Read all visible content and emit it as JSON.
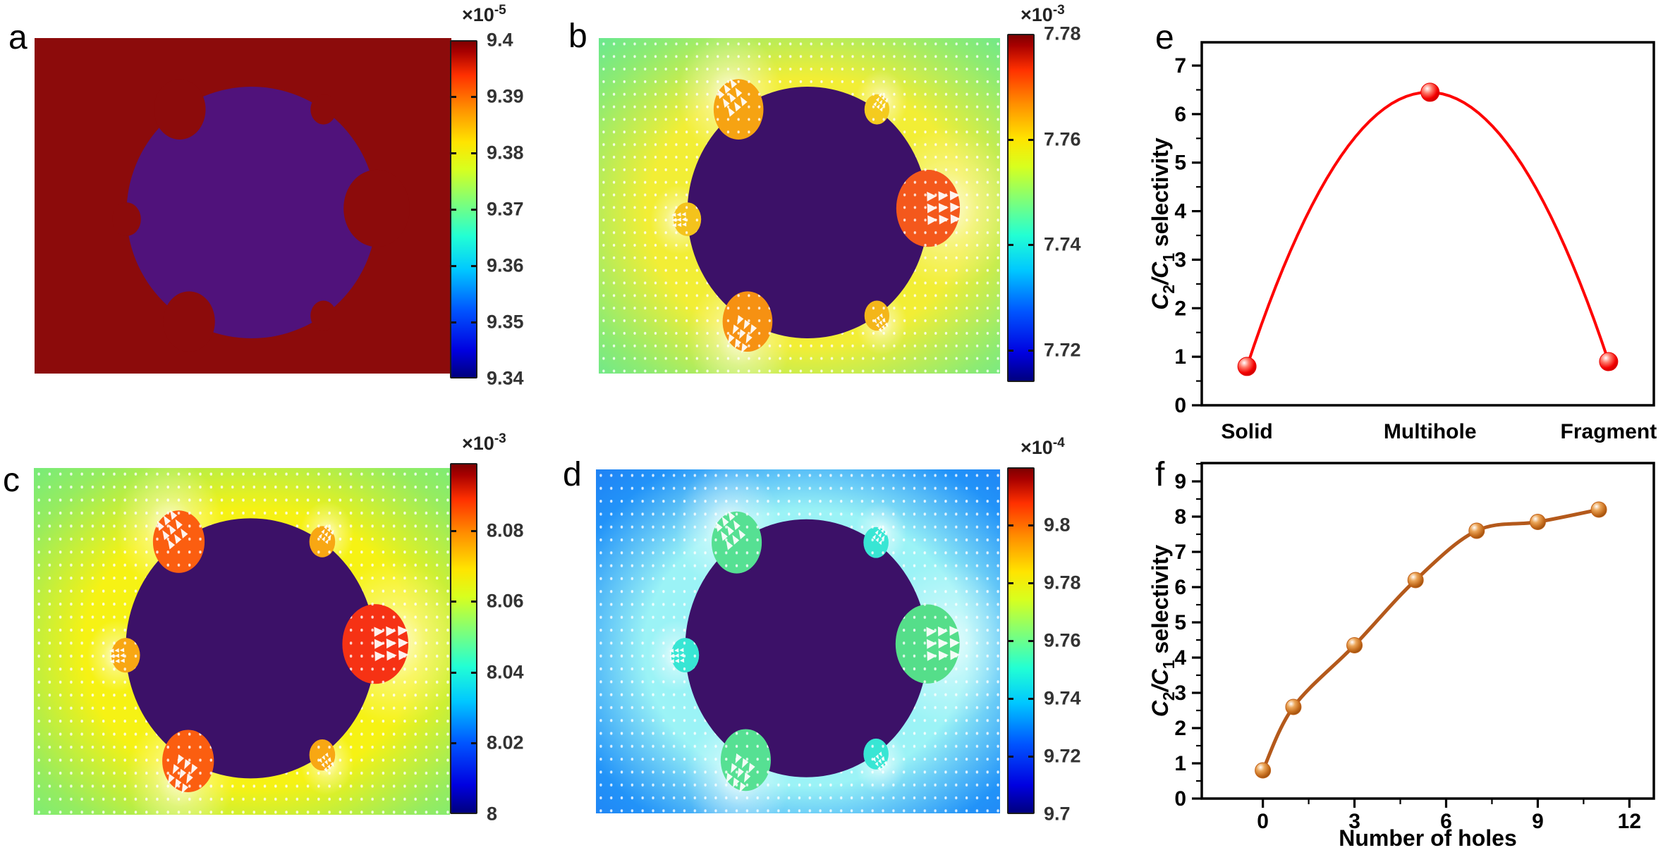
{
  "figure": {
    "panels": {
      "a": {
        "letter": "a",
        "map": {
          "corner": "#8c0b0b",
          "mid": "#8c0b0b",
          "ring": "#8c0b0b",
          "circle_color": "#50127b",
          "quiver": false,
          "hole_colors": [
            "#8c0b0b",
            "#8c0b0b",
            "#8c0b0b",
            "#8c0b0b",
            "#8c0b0b",
            "#8c0b0b"
          ]
        },
        "colorbar": {
          "scale_base": "×10",
          "scale_exp": "-5",
          "vmin": 9.34,
          "vmax": 9.4,
          "ticks": [
            {
              "v": 9.4,
              "label": "9.4"
            },
            {
              "v": 9.39,
              "label": "9.39"
            },
            {
              "v": 9.38,
              "label": "9.38"
            },
            {
              "v": 9.37,
              "label": "9.37"
            },
            {
              "v": 9.36,
              "label": "9.36"
            },
            {
              "v": 9.35,
              "label": "9.35"
            },
            {
              "v": 9.34,
              "label": "9.34"
            }
          ]
        }
      },
      "b": {
        "letter": "b",
        "map": {
          "corner": "#27e2c6",
          "mid": "#8deb72",
          "ring": "#f2ee35",
          "circle_color": "#3c1168",
          "quiver": true,
          "hole_colors": [
            "#f6a312",
            "#f4cb1e",
            "#f4581c",
            "#f4c31c",
            "#f69112",
            "#f4b619"
          ]
        },
        "colorbar": {
          "scale_base": "×10",
          "scale_exp": "-3",
          "vmin": 7.714,
          "vmax": 7.78,
          "ticks": [
            {
              "v": 7.78,
              "label": "7.78"
            },
            {
              "v": 7.76,
              "label": "7.76"
            },
            {
              "v": 7.74,
              "label": "7.74"
            },
            {
              "v": 7.72,
              "label": "7.72"
            }
          ]
        }
      },
      "c": {
        "letter": "c",
        "map": {
          "corner": "#3fe9a9",
          "mid": "#95ec60",
          "ring": "#f6f214",
          "circle_color": "#3c1168",
          "quiver": true,
          "hole_colors": [
            "#fb5e10",
            "#f8a713",
            "#f63214",
            "#f8a713",
            "#fb5e10",
            "#f8a713"
          ]
        },
        "colorbar": {
          "scale_base": "×10",
          "scale_exp": "-3",
          "vmin": 8.0,
          "vmax": 8.099,
          "ticks": [
            {
              "v": 8.08,
              "label": "8.08"
            },
            {
              "v": 8.06,
              "label": "8.06"
            },
            {
              "v": 8.04,
              "label": "8.04"
            },
            {
              "v": 8.02,
              "label": "8.02"
            },
            {
              "v": 8.0,
              "label": "8"
            }
          ]
        }
      },
      "d": {
        "letter": "d",
        "map": {
          "corner": "#1861ec",
          "mid": "#2293f8",
          "ring": "#9bf3f6",
          "circle_color": "#3c1168",
          "quiver": true,
          "hole_colors": [
            "#56e093",
            "#38e6d4",
            "#55de8a",
            "#38e6d4",
            "#56e093",
            "#38e6d4"
          ]
        },
        "colorbar": {
          "scale_base": "×10",
          "scale_exp": "-4",
          "vmin": 9.7,
          "vmax": 9.82,
          "ticks": [
            {
              "v": 9.8,
              "label": "9.8"
            },
            {
              "v": 9.78,
              "label": "9.78"
            },
            {
              "v": 9.76,
              "label": "9.76"
            },
            {
              "v": 9.74,
              "label": "9.74"
            },
            {
              "v": 9.72,
              "label": "9.72"
            },
            {
              "v": 9.7,
              "label": "9.7"
            }
          ]
        }
      },
      "e": {
        "letter": "e"
      },
      "f": {
        "letter": "f"
      }
    }
  },
  "chart_data": [
    {
      "id": "e",
      "type": "line",
      "categories": [
        "Solid",
        "Multihole",
        "Fragment"
      ],
      "values": [
        0.8,
        6.45,
        0.9
      ],
      "ylabel": "C2/C1 selectivity",
      "ylabel_parts": [
        [
          "C",
          "i"
        ],
        [
          "2",
          "sub"
        ],
        [
          "/C",
          "i"
        ],
        [
          "1",
          "sub"
        ],
        [
          " selectivity",
          "n"
        ]
      ],
      "ylim": [
        0,
        7.48
      ],
      "yticks": [
        0,
        1,
        2,
        3,
        4,
        5,
        6,
        7
      ],
      "grid": false,
      "legend_position": null,
      "line_color": "#fe0000",
      "marker_color": "#e80000",
      "curve": "quad"
    },
    {
      "id": "f",
      "type": "line",
      "x": [
        0,
        1,
        3,
        5,
        7,
        9,
        11
      ],
      "values": [
        0.8,
        2.6,
        4.35,
        6.2,
        7.6,
        7.85,
        8.2
      ],
      "xlabel": "Number of holes",
      "xticks": [
        0,
        3,
        6,
        9,
        12
      ],
      "xlim": [
        -2,
        12.8
      ],
      "ylabel": "C2/C1 selectivity",
      "ylabel_parts": [
        [
          "C",
          "i"
        ],
        [
          "2",
          "sub"
        ],
        [
          "/C",
          "i"
        ],
        [
          "1",
          "sub"
        ],
        [
          " selectivity",
          "n"
        ]
      ],
      "ylim": [
        0,
        9.52
      ],
      "yticks": [
        0,
        1,
        2,
        3,
        4,
        5,
        6,
        7,
        8,
        9
      ],
      "grid": false,
      "legend_position": null,
      "line_color": "#b4591b",
      "marker_color": "#c06018",
      "curve": "smooth"
    }
  ]
}
